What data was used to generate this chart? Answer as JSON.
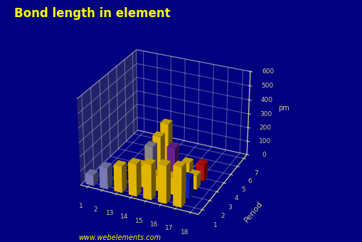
{
  "title": "Bond length in element",
  "ylabel": "Period",
  "zlabel": "pm",
  "background_color": "#000080",
  "floor_color": "#555566",
  "title_color": "#ffff00",
  "axis_color": "#cccc88",
  "groups": [
    1,
    2,
    13,
    14,
    15,
    16,
    17,
    18
  ],
  "periods": [
    1,
    2,
    3,
    4,
    5,
    6,
    7
  ],
  "zlim": [
    0,
    600
  ],
  "zticks": [
    0,
    100,
    200,
    300,
    400,
    500,
    600
  ],
  "bond_lengths": {
    "1": [
      74,
      152,
      186,
      227,
      248,
      266,
      280,
      0
    ],
    "2": [
      0,
      0,
      0,
      154,
      110,
      121,
      141,
      0
    ],
    "3": [
      0,
      0,
      0,
      230,
      110,
      104,
      99,
      0
    ],
    "4": [
      0,
      0,
      0,
      244,
      186,
      103,
      114,
      0
    ],
    "5": [
      0,
      0,
      0,
      280,
      0,
      0,
      0,
      0
    ],
    "6": [
      0,
      0,
      14,
      0,
      0,
      0,
      0,
      0
    ],
    "7": [
      0,
      0,
      0,
      0,
      0,
      0,
      0,
      0
    ]
  },
  "bar_colors": {
    "1_1": "#8888cc",
    "1_2": "#9999cc",
    "1_3": "#8899cc",
    "1_4": "#8899cc",
    "1_5": "#8899cc",
    "1_6": "#8899cc",
    "1_7": "#8899cc",
    "2_1": "#8888cc",
    "2_2": "#9999cc",
    "2_3": "#8899cc",
    "2_4": "#8899cc",
    "2_5": "#8899cc",
    "2_6": "#8899cc",
    "2_7": "#8899cc",
    "13_1": "#ffcc00",
    "13_2": "#ffcc00",
    "13_3": "#cc4400",
    "13_4": "#ffcc00",
    "13_5": "#ffcc00",
    "13_6": "#ffcc00",
    "13_7": "#ffcc00",
    "14_1": "#ffcc00",
    "14_2": "#ffcc00",
    "14_3": "#999999",
    "14_4": "#ffcc00",
    "14_5": "#ffcc00",
    "14_6": "#ffcc00",
    "14_7": "#ffcc00",
    "15_1": "#ffcc00",
    "15_2": "#ffcc00",
    "15_3": "#ff44cc",
    "15_4": "#7722aa",
    "15_5": "#ffcc00",
    "15_6": "#ffcc00",
    "15_7": "#ffcc00",
    "16_1": "#ffcc00",
    "16_2": "#ffcc00",
    "16_3": "#ff7722",
    "16_4": "#ffcc00",
    "16_5": "#ffcc00",
    "16_6": "#ffcc00",
    "16_7": "#ffcc00",
    "17_1": "#ffcc00",
    "17_2": "#1122dd",
    "17_3": "#ffcc00",
    "17_4": "#cc1111",
    "17_5": "#ffcc00",
    "17_6": "#ffcc00",
    "17_7": "#ffcc00",
    "18_1": "#ffbbdd",
    "18_2": "#009900",
    "18_3": "#ffcc00",
    "18_4": "#ffcc00",
    "18_5": "#ffcc00",
    "18_6": "#ffcc00",
    "18_7": "#ffcc00"
  },
  "watermark": "www.webelements.com",
  "watermark_color": "#ffff00",
  "elev": 28,
  "azim": -65
}
